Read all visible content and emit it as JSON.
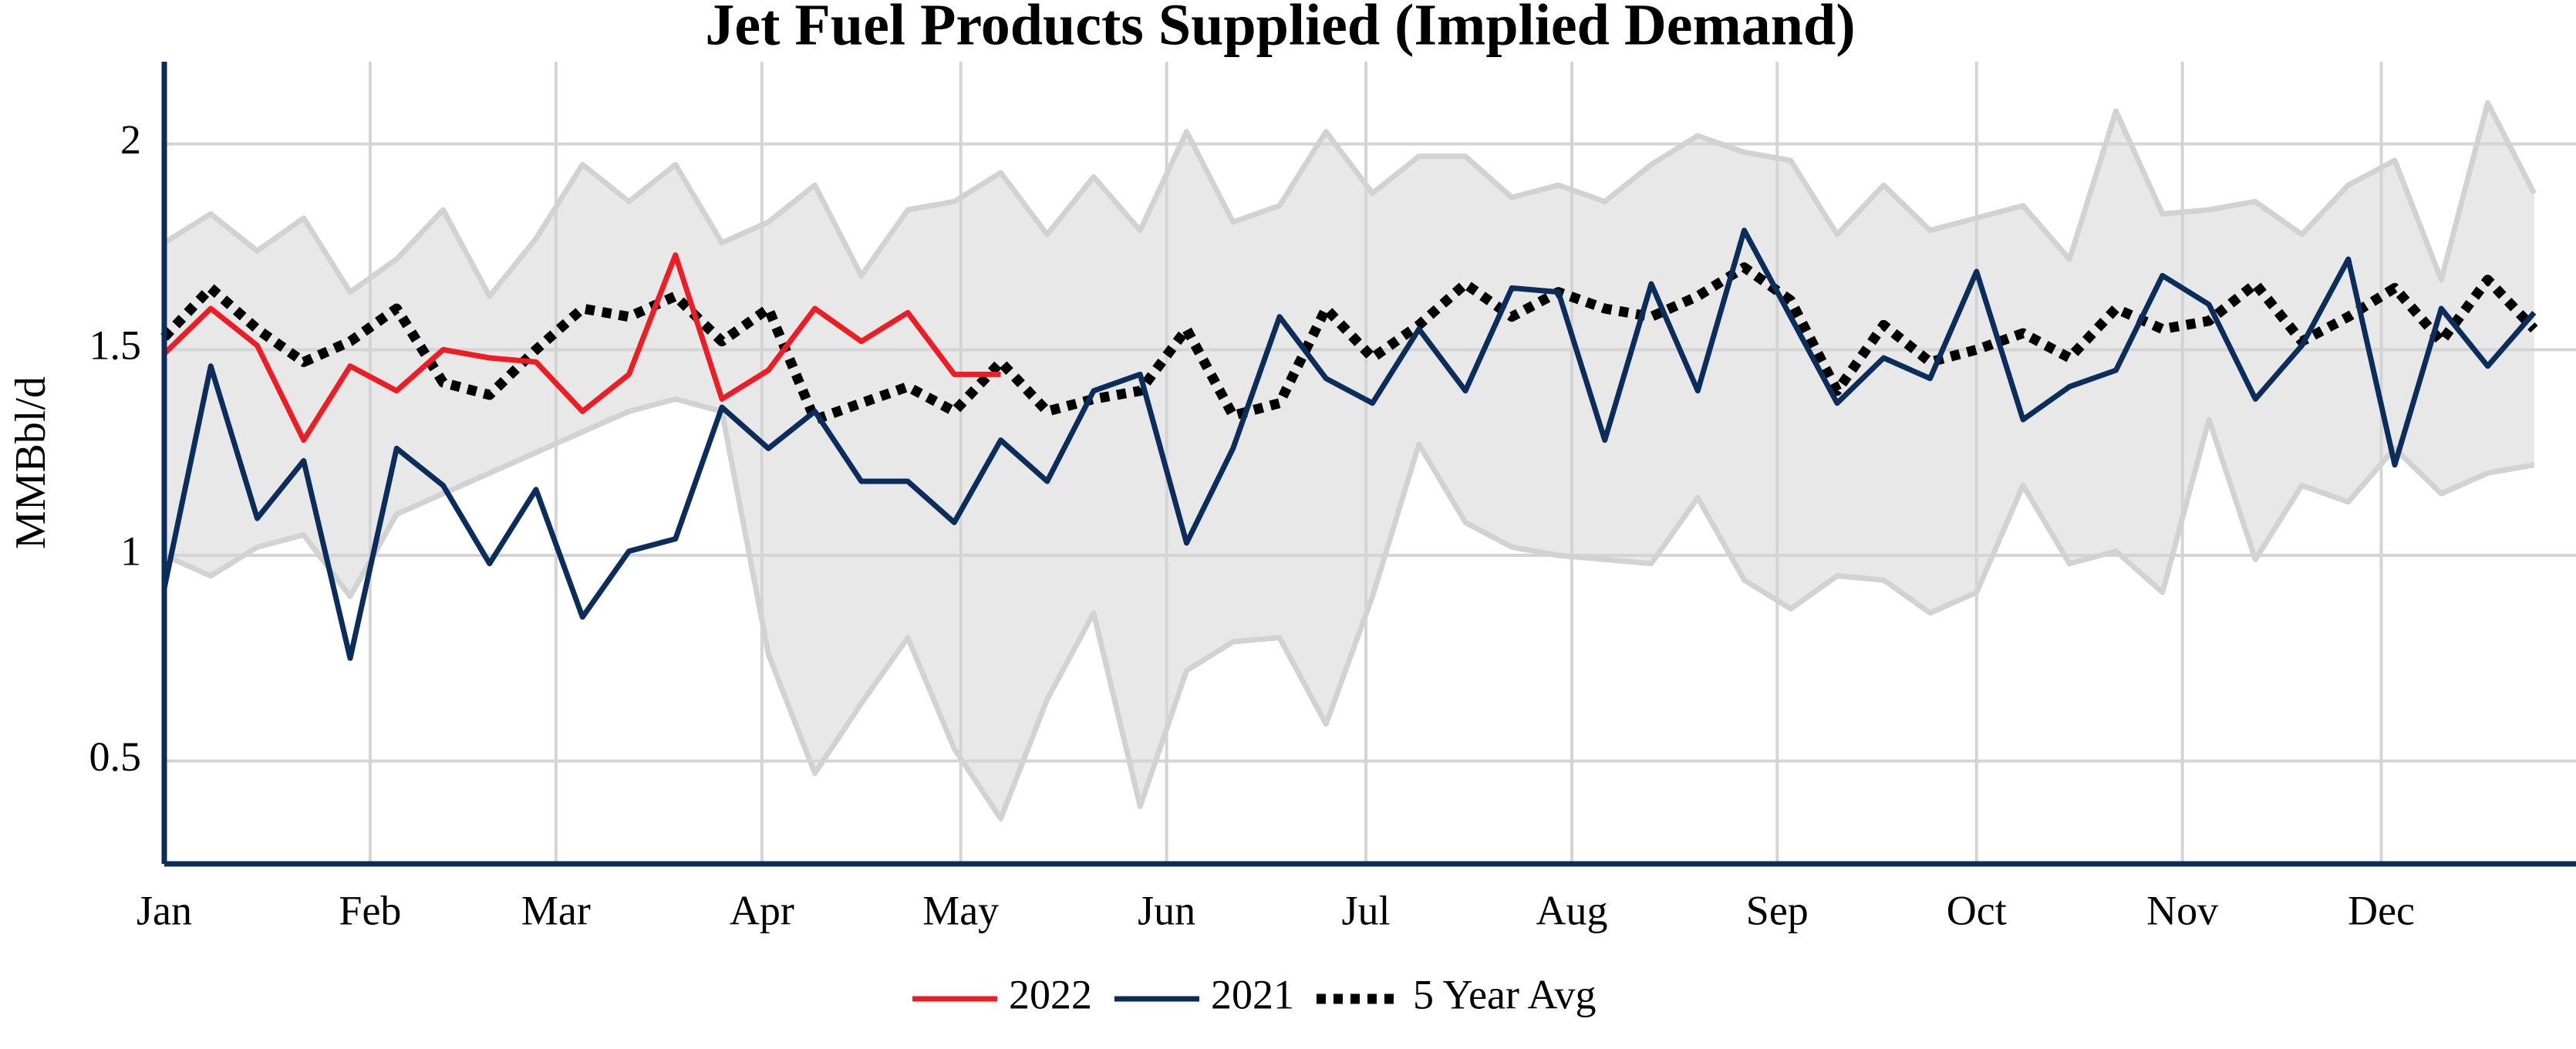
{
  "chart_data": {
    "type": "line",
    "title": "Jet Fuel Products Supplied (Implied Demand)",
    "y_label": "MMBbl/d",
    "x": [
      0,
      1,
      2,
      3,
      4,
      5,
      6,
      7,
      8,
      9,
      10,
      11,
      12,
      13,
      14,
      15,
      16,
      17,
      18,
      19,
      20,
      21,
      22,
      23,
      24,
      25,
      26,
      27,
      28,
      29,
      30,
      31,
      32,
      33,
      34,
      35,
      36,
      37,
      38,
      39,
      40,
      41,
      42,
      43,
      44,
      45,
      46,
      47,
      48,
      49,
      50,
      51
    ],
    "xlim": [
      0,
      51.9
    ],
    "xticks": [
      {
        "value": 0,
        "label": "Jan"
      },
      {
        "value": 4.43,
        "label": "Feb"
      },
      {
        "value": 8.43,
        "label": "Mar"
      },
      {
        "value": 12.86,
        "label": "Apr"
      },
      {
        "value": 17.14,
        "label": "May"
      },
      {
        "value": 21.57,
        "label": "Jun"
      },
      {
        "value": 25.86,
        "label": "Jul"
      },
      {
        "value": 30.29,
        "label": "Aug"
      },
      {
        "value": 34.71,
        "label": "Sep"
      },
      {
        "value": 39,
        "label": "Oct"
      },
      {
        "value": 43.43,
        "label": "Nov"
      },
      {
        "value": 47.71,
        "label": "Dec"
      }
    ],
    "ylim": [
      0.25,
      2.2
    ],
    "yticks": [
      0.5,
      1,
      1.5,
      2
    ],
    "grid": true,
    "legend": "bottom",
    "range": {
      "color": "#e8e8e8",
      "edge_color": "#d2d2d2",
      "upper": [
        1.76,
        1.83,
        1.74,
        1.82,
        1.64,
        1.72,
        1.84,
        1.63,
        1.77,
        1.95,
        1.86,
        1.95,
        1.76,
        1.81,
        1.9,
        1.68,
        1.84,
        1.86,
        1.93,
        1.78,
        1.92,
        1.79,
        2.03,
        1.81,
        1.85,
        2.03,
        1.88,
        1.97,
        1.97,
        1.87,
        1.9,
        1.86,
        1.95,
        2.02,
        1.98,
        1.96,
        1.78,
        1.9,
        1.79,
        1.82,
        1.85,
        1.72,
        2.08,
        1.83,
        1.84,
        1.86,
        1.78,
        1.9,
        1.96,
        1.67,
        2.1,
        1.88
      ],
      "lower": [
        1.0,
        0.95,
        1.02,
        1.05,
        0.9,
        1.1,
        1.15,
        1.2,
        1.25,
        1.3,
        1.35,
        1.38,
        1.35,
        0.76,
        0.47,
        0.64,
        0.8,
        0.53,
        0.36,
        0.65,
        0.86,
        0.39,
        0.72,
        0.79,
        0.8,
        0.59,
        0.9,
        1.27,
        1.08,
        1.02,
        1.0,
        0.99,
        0.98,
        1.14,
        0.94,
        0.87,
        0.95,
        0.94,
        0.86,
        0.91,
        1.17,
        0.98,
        1.01,
        0.91,
        1.33,
        0.99,
        1.17,
        1.13,
        1.26,
        1.15,
        1.2,
        1.22
      ]
    },
    "series": [
      {
        "name": "2022",
        "color": "#ee1c25",
        "dash": "solid",
        "values": [
          1.49,
          1.6,
          1.51,
          1.28,
          1.46,
          1.4,
          1.5,
          1.48,
          1.47,
          1.35,
          1.44,
          1.73,
          1.38,
          1.45,
          1.6,
          1.52,
          1.59,
          1.44,
          1.44,
          null,
          null,
          null,
          null,
          null,
          null,
          null,
          null,
          null,
          null,
          null,
          null,
          null,
          null,
          null,
          null,
          null,
          null,
          null,
          null,
          null,
          null,
          null,
          null,
          null,
          null,
          null,
          null,
          null,
          null,
          null,
          null,
          null
        ]
      },
      {
        "name": "2021",
        "color": "#0b2d5b",
        "dash": "solid",
        "values": [
          0.92,
          1.46,
          1.09,
          1.23,
          0.75,
          1.26,
          1.17,
          0.98,
          1.16,
          0.85,
          1.01,
          1.04,
          1.36,
          1.26,
          1.35,
          1.18,
          1.18,
          1.08,
          1.28,
          1.18,
          1.4,
          1.44,
          1.03,
          1.26,
          1.58,
          1.43,
          1.37,
          1.55,
          1.4,
          1.65,
          1.64,
          1.28,
          1.66,
          1.4,
          1.79,
          1.58,
          1.37,
          1.48,
          1.43,
          1.69,
          1.33,
          1.41,
          1.45,
          1.68,
          1.61,
          1.38,
          1.51,
          1.72,
          1.22,
          1.6,
          1.46,
          1.59
        ]
      },
      {
        "name": "5 Year Avg",
        "color": "#000000",
        "dash": "dotted",
        "values": [
          1.53,
          1.65,
          1.55,
          1.47,
          1.52,
          1.6,
          1.42,
          1.39,
          1.5,
          1.6,
          1.58,
          1.63,
          1.52,
          1.6,
          1.33,
          1.37,
          1.41,
          1.35,
          1.47,
          1.35,
          1.38,
          1.4,
          1.55,
          1.34,
          1.37,
          1.6,
          1.48,
          1.56,
          1.66,
          1.58,
          1.64,
          1.6,
          1.58,
          1.63,
          1.7,
          1.62,
          1.4,
          1.56,
          1.47,
          1.5,
          1.54,
          1.48,
          1.6,
          1.55,
          1.57,
          1.66,
          1.52,
          1.58,
          1.65,
          1.52,
          1.67,
          1.55
        ]
      }
    ]
  }
}
